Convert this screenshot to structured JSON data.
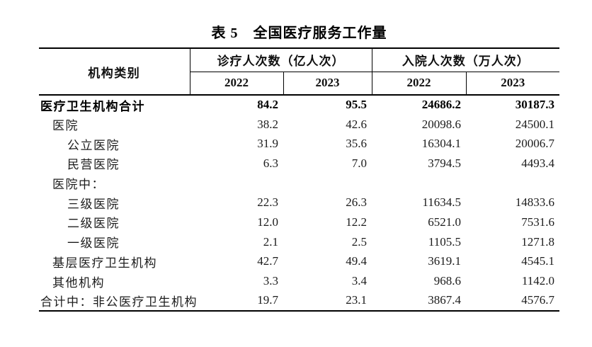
{
  "title": "表 5　全国医疗服务工作量",
  "table": {
    "col_group_label": "机构类别",
    "groups": [
      {
        "label": "诊疗人次数（亿人次）",
        "years": [
          "2022",
          "2023"
        ]
      },
      {
        "label": "入院人次数（万人次）",
        "years": [
          "2022",
          "2023"
        ]
      }
    ],
    "rows": [
      {
        "label": "医疗卫生机构合计",
        "indent": 0,
        "bold": true,
        "values": [
          "84.2",
          "95.5",
          "24686.2",
          "30187.3"
        ]
      },
      {
        "label": "医院",
        "indent": 1,
        "bold": false,
        "values": [
          "38.2",
          "42.6",
          "20098.6",
          "24500.1"
        ]
      },
      {
        "label": "公立医院",
        "indent": 2,
        "bold": false,
        "values": [
          "31.9",
          "35.6",
          "16304.1",
          "20006.7"
        ]
      },
      {
        "label": "民营医院",
        "indent": 2,
        "bold": false,
        "values": [
          "6.3",
          "7.0",
          "3794.5",
          "4493.4"
        ]
      },
      {
        "label": "医院中：",
        "indent": 1,
        "bold": false,
        "values": [
          "",
          "",
          "",
          ""
        ]
      },
      {
        "label": "三级医院",
        "indent": 2,
        "bold": false,
        "values": [
          "22.3",
          "26.3",
          "11634.5",
          "14833.6"
        ]
      },
      {
        "label": "二级医院",
        "indent": 2,
        "bold": false,
        "values": [
          "12.0",
          "12.2",
          "6521.0",
          "7531.6"
        ]
      },
      {
        "label": "一级医院",
        "indent": 2,
        "bold": false,
        "values": [
          "2.1",
          "2.5",
          "1105.5",
          "1271.8"
        ]
      },
      {
        "label": "基层医疗卫生机构",
        "indent": 1,
        "bold": false,
        "values": [
          "42.7",
          "49.4",
          "3619.1",
          "4545.1"
        ]
      },
      {
        "label": "其他机构",
        "indent": 1,
        "bold": false,
        "values": [
          "3.3",
          "3.4",
          "968.6",
          "1142.0"
        ]
      },
      {
        "label": "合计中：非公医疗卫生机构",
        "indent": 0,
        "bold": false,
        "values": [
          "19.7",
          "23.1",
          "3867.4",
          "4576.7"
        ]
      }
    ]
  },
  "colors": {
    "text": "#1c1c1c",
    "border": "#000000",
    "background": "#ffffff"
  }
}
